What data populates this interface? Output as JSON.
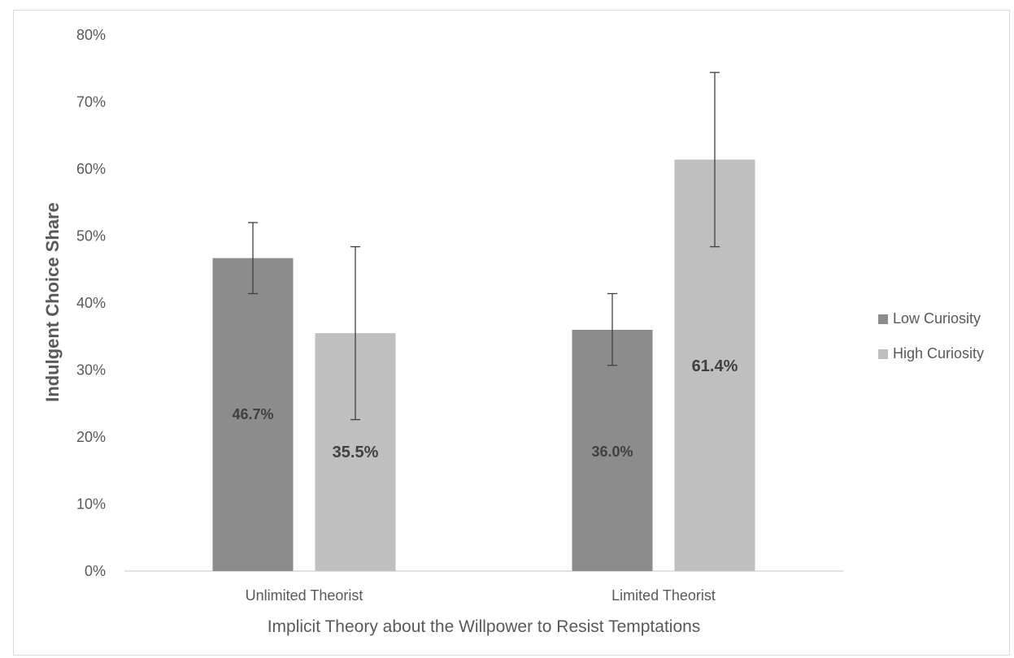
{
  "chart_data": {
    "type": "bar",
    "title": "",
    "xlabel": "Implicit Theory about the Willpower to Resist Temptations",
    "ylabel": "Indulgent Choice Share",
    "categories": [
      "Unlimited Theorist",
      "Limited Theorist"
    ],
    "series": [
      {
        "name": "Low Curiosity",
        "color": "#8c8c8c",
        "values": [
          46.7,
          36.0
        ],
        "labels": [
          "46.7%",
          "36.0%"
        ],
        "error_low": [
          41.4,
          30.7
        ],
        "error_high": [
          52.0,
          41.4
        ]
      },
      {
        "name": "High Curiosity",
        "color": "#bfbfbf",
        "values": [
          35.5,
          61.4
        ],
        "labels": [
          "35.5%",
          "61.4%"
        ],
        "error_low": [
          22.6,
          48.4
        ],
        "error_high": [
          48.4,
          74.4
        ]
      }
    ],
    "ylim": [
      0,
      80
    ],
    "yticks": [
      0,
      10,
      20,
      30,
      40,
      50,
      60,
      70,
      80
    ],
    "ytick_labels": [
      "0%",
      "10%",
      "20%",
      "30%",
      "40%",
      "50%",
      "60%",
      "70%",
      "80%"
    ],
    "grid": false,
    "legend_position": "right"
  }
}
